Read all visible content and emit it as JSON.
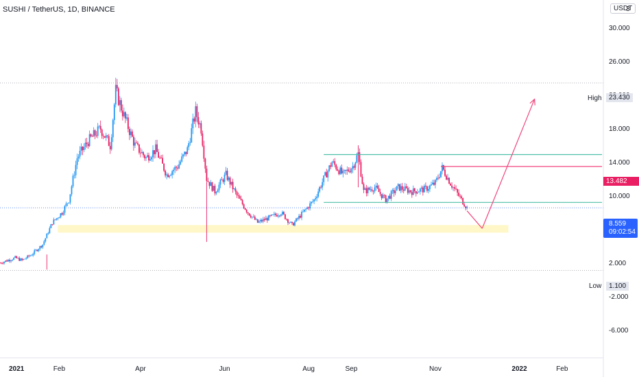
{
  "header": {
    "title": "SUSHI / TetherUS, 1D, BINANCE",
    "unit_button": "USDT",
    "axis_top_partial": "3"
  },
  "colors": {
    "up": "#26a69a",
    "up_candle": "#2196f3",
    "down": "#e91e63",
    "grid": "#f0f3fa",
    "teal_line": "#4dbfa8",
    "red_line": "#f0457d",
    "support_zone": "#fff7c7",
    "price_tag": "#2962ff"
  },
  "chart_data": {
    "type": "candlestick",
    "title": "SUSHI / TetherUS, 1D, BINANCE",
    "y_axis": {
      "ticks": [
        "30.000",
        "26.000",
        "22.000",
        "18.000",
        "14.000",
        "10.000",
        "6.000",
        "2.000",
        "-2.000",
        "-6.000"
      ],
      "range": [
        -8,
        34
      ]
    },
    "x_axis": {
      "ticks": [
        "2021",
        "Feb",
        "Apr",
        "Jun",
        "Aug",
        "Sep",
        "Nov",
        "2022",
        "Feb"
      ]
    },
    "levels": {
      "high": {
        "label": "High",
        "value": "23.430"
      },
      "low": {
        "label": "Low",
        "value": "1.100"
      },
      "red_level": {
        "value": "13.482"
      },
      "last_price": {
        "value": "8.559",
        "countdown": "09:02:54"
      }
    },
    "price_path": [
      [
        "2020-12-20",
        2.0
      ],
      [
        "2020-12-31",
        2.6
      ],
      [
        "2021-01-05",
        2.3
      ],
      [
        "2021-01-12",
        3.0
      ],
      [
        "2021-01-20",
        4.2
      ],
      [
        "2021-01-27",
        6.8
      ],
      [
        "2021-02-03",
        8.0
      ],
      [
        "2021-02-08",
        9.5
      ],
      [
        "2021-02-14",
        14.5
      ],
      [
        "2021-02-22",
        16.5
      ],
      [
        "2021-03-03",
        18.0
      ],
      [
        "2021-03-10",
        16.0
      ],
      [
        "2021-03-14",
        22.5
      ],
      [
        "2021-03-20",
        19.5
      ],
      [
        "2021-03-28",
        16.0
      ],
      [
        "2021-04-05",
        14.5
      ],
      [
        "2021-04-12",
        15.5
      ],
      [
        "2021-04-20",
        12.5
      ],
      [
        "2021-04-28",
        13.5
      ],
      [
        "2021-05-05",
        15.5
      ],
      [
        "2021-05-11",
        20.0
      ],
      [
        "2021-05-15",
        18.0
      ],
      [
        "2021-05-19",
        12.0
      ],
      [
        "2021-05-25",
        10.5
      ],
      [
        "2021-06-02",
        12.5
      ],
      [
        "2021-06-10",
        10.0
      ],
      [
        "2021-06-18",
        8.0
      ],
      [
        "2021-06-25",
        6.8
      ],
      [
        "2021-07-05",
        7.5
      ],
      [
        "2021-07-12",
        8.0
      ],
      [
        "2021-07-20",
        6.5
      ],
      [
        "2021-07-28",
        8.0
      ],
      [
        "2021-08-05",
        9.5
      ],
      [
        "2021-08-12",
        12.0
      ],
      [
        "2021-08-18",
        14.0
      ],
      [
        "2021-08-26",
        12.5
      ],
      [
        "2021-09-02",
        13.5
      ],
      [
        "2021-09-06",
        15.0
      ],
      [
        "2021-09-10",
        10.5
      ],
      [
        "2021-09-18",
        11.0
      ],
      [
        "2021-09-26",
        9.5
      ],
      [
        "2021-10-05",
        11.0
      ],
      [
        "2021-10-15",
        10.5
      ],
      [
        "2021-10-25",
        10.8
      ],
      [
        "2021-11-01",
        11.5
      ],
      [
        "2021-11-06",
        13.3
      ],
      [
        "2021-11-12",
        11.5
      ],
      [
        "2021-11-18",
        10.0
      ],
      [
        "2021-11-24",
        8.559
      ]
    ],
    "drawings": [
      {
        "type": "hline",
        "name": "high-line",
        "y": 23.43,
        "style": "dotted"
      },
      {
        "type": "hline",
        "name": "low-line",
        "y": 1.1,
        "style": "dotted"
      },
      {
        "type": "hline",
        "name": "last-price-line",
        "y": 8.559,
        "style": "dotted"
      },
      {
        "type": "segment",
        "name": "upper-resistance",
        "x1": "2021-08-12",
        "x2": "2022-03-02",
        "y": 14.9
      },
      {
        "type": "segment",
        "name": "lower-support",
        "x1": "2021-08-12",
        "x2": "2022-03-02",
        "y": 9.2
      },
      {
        "type": "segment",
        "name": "red-level",
        "x1": "2021-11-05",
        "x2": "2022-03-02",
        "y": 13.482
      },
      {
        "type": "zone",
        "name": "support-zone",
        "x1": "2021-01-31",
        "x2": "2021-12-24",
        "y1": 5.6,
        "y2": 6.5
      },
      {
        "type": "projection",
        "name": "projection-down",
        "points": [
          [
            "2021-11-24",
            8.2
          ],
          [
            "2021-12-05",
            6.1
          ]
        ]
      },
      {
        "type": "projection",
        "name": "projection-up",
        "points": [
          [
            "2021-12-05",
            6.1
          ],
          [
            "2022-01-12",
            21.5
          ]
        ]
      }
    ]
  }
}
